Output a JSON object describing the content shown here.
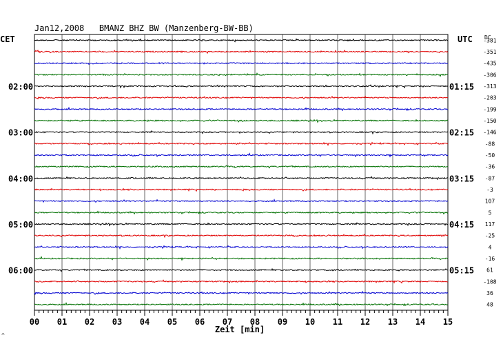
{
  "header": {
    "title": "Jan12,2008   BMANZ BHZ BW (Manzenberg-BW-BB)",
    "left_tz": "CET",
    "right_tz": "UTC",
    "dc_label": "DC",
    "corner_mark": "^"
  },
  "colors": {
    "background": "#ffffff",
    "grid": "#000000",
    "trace_cycle": [
      "#000000",
      "#e00000",
      "#0000d0",
      "#007000"
    ]
  },
  "chart_data": {
    "type": "line",
    "xlabel": "Zeit [min]",
    "x_ticks": [
      "00",
      "01",
      "02",
      "03",
      "04",
      "05",
      "06",
      "07",
      "08",
      "09",
      "10",
      "11",
      "12",
      "13",
      "14",
      "15"
    ],
    "xlim": [
      0,
      15
    ],
    "left_time_labels": [
      {
        "row": 4,
        "text": "02:00"
      },
      {
        "row": 8,
        "text": "03:00"
      },
      {
        "row": 12,
        "text": "04:00"
      },
      {
        "row": 16,
        "text": "05:00"
      },
      {
        "row": 20,
        "text": "06:00"
      }
    ],
    "right_time_labels": [
      {
        "row": 4,
        "text": "01:15"
      },
      {
        "row": 8,
        "text": "02:15"
      },
      {
        "row": 12,
        "text": "03:15"
      },
      {
        "row": 16,
        "text": "04:15"
      },
      {
        "row": 20,
        "text": "05:15"
      }
    ],
    "dc_offsets": [
      "-381",
      "-351",
      "-435",
      "-306",
      "-313",
      "-203",
      "-199",
      "-150",
      "-146",
      "-88",
      "-50",
      "-36",
      "-87",
      "-3",
      "107",
      "5",
      "117",
      "-25",
      "4",
      "-16",
      "61",
      "-108",
      "36",
      "48"
    ],
    "series_count": 24
  }
}
